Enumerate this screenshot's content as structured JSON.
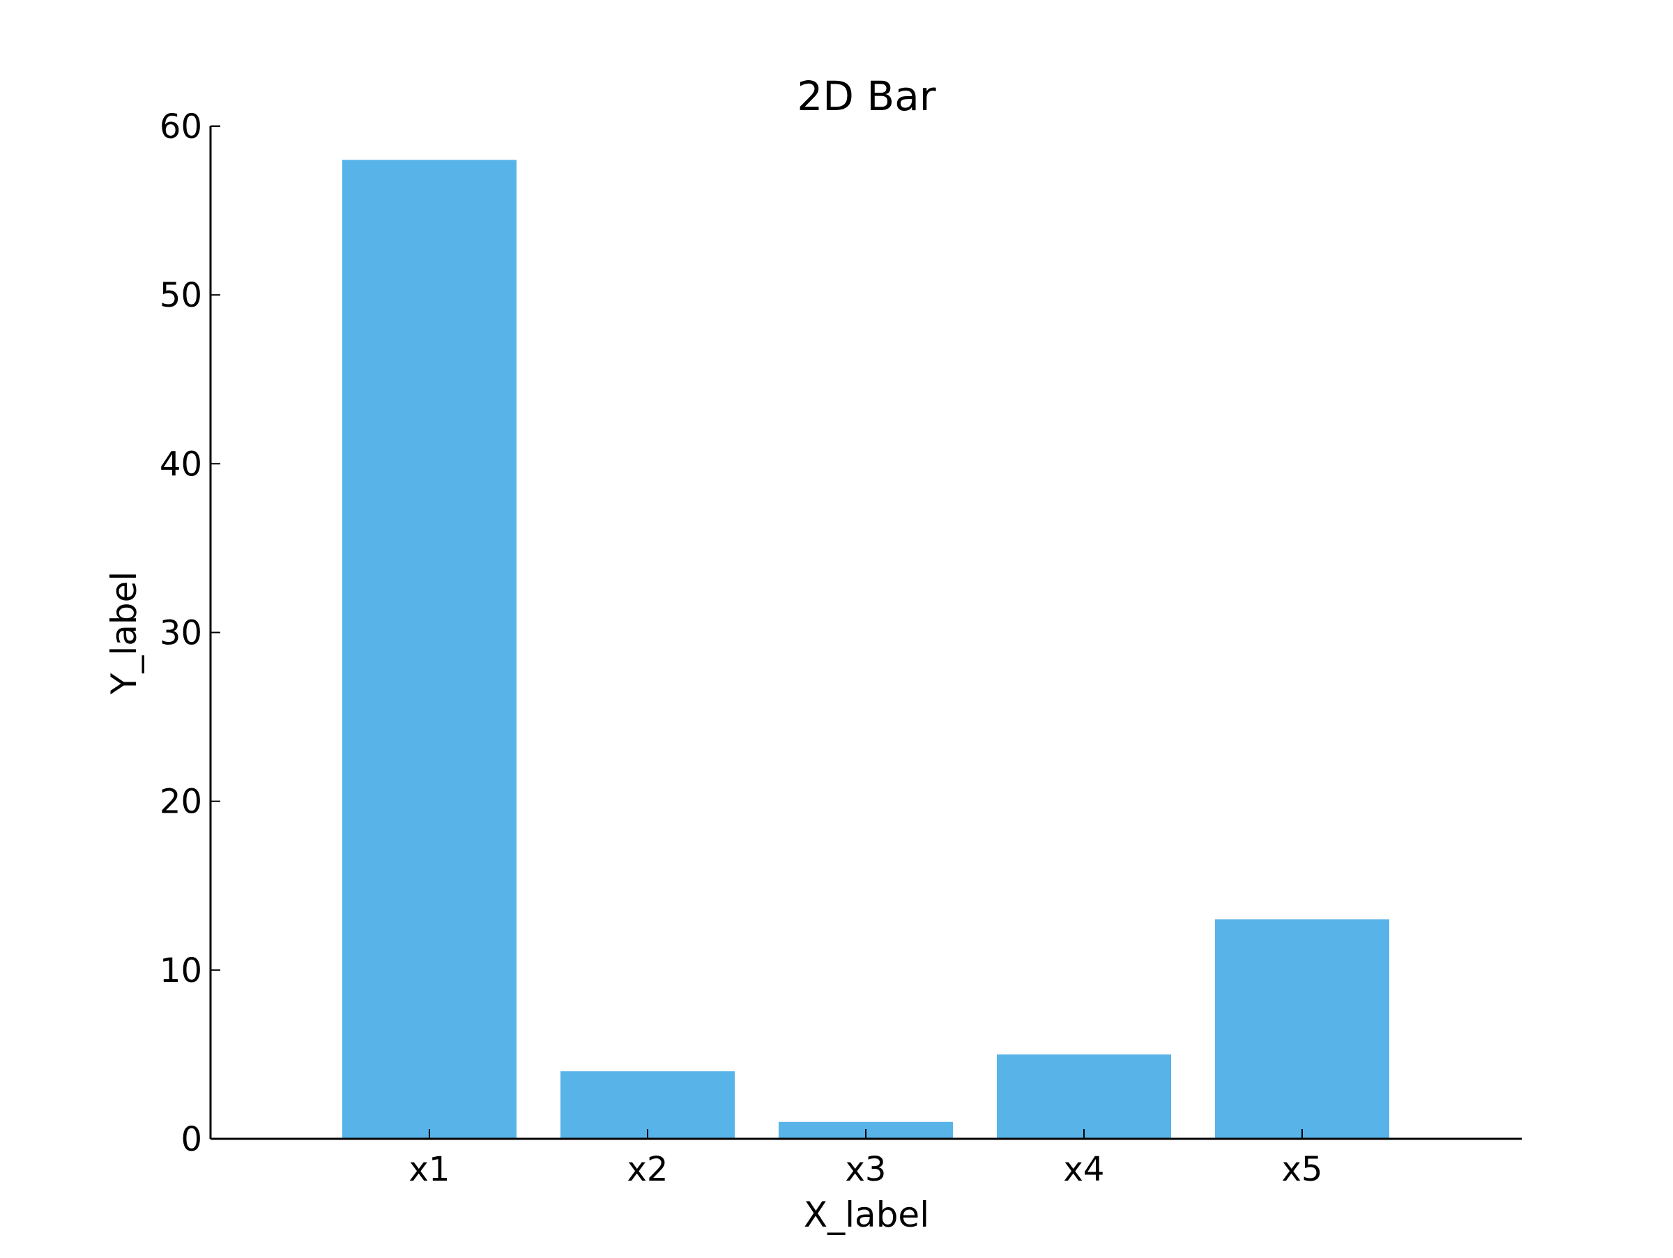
{
  "chart_data": {
    "type": "bar",
    "title": "2D Bar",
    "xlabel": "X_label",
    "ylabel": "Y_label",
    "categories": [
      "x1",
      "x2",
      "x3",
      "x4",
      "x5"
    ],
    "values": [
      58,
      4,
      1,
      5,
      13
    ],
    "ylim": [
      0,
      60
    ],
    "yticks": [
      0,
      10,
      20,
      30,
      40,
      50,
      60
    ],
    "grid": false,
    "bar_color": "#57b3e8",
    "axis_color": "#000000"
  }
}
